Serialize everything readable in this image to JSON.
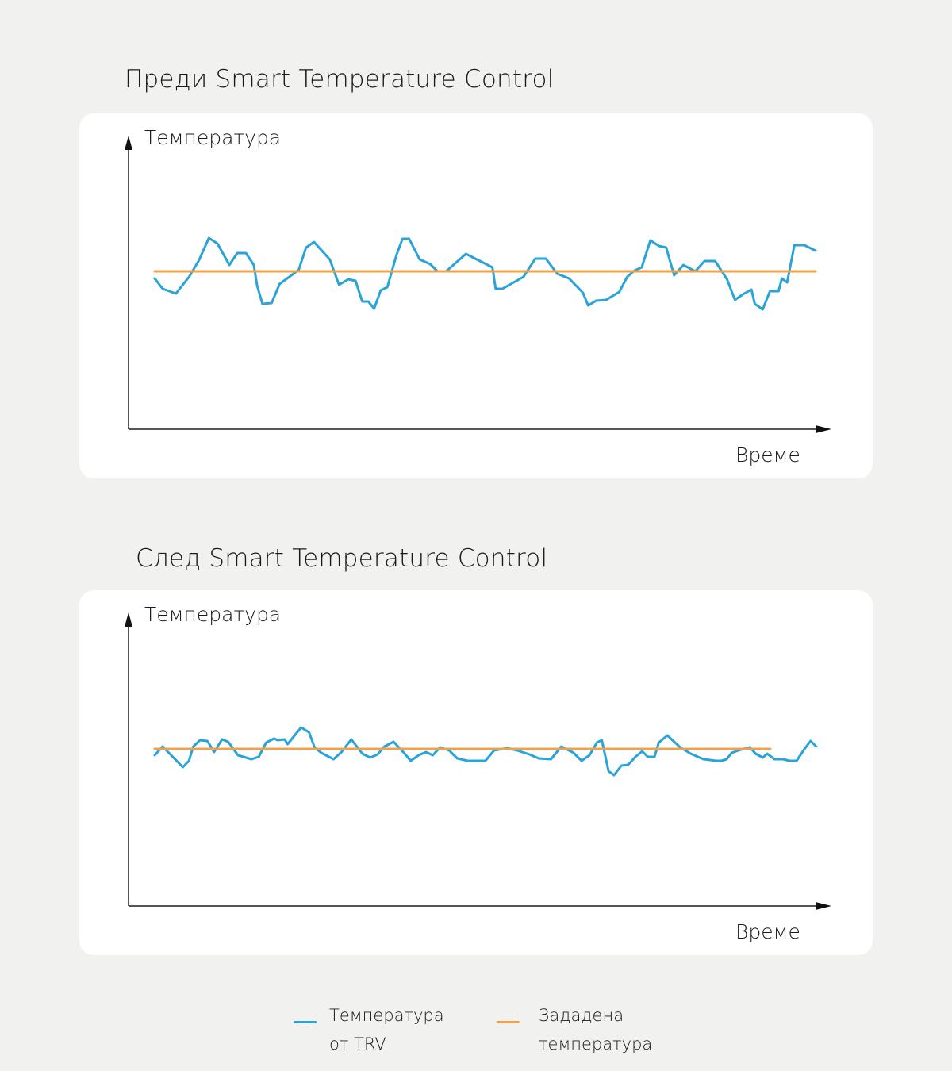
{
  "charts": [
    {
      "title": "Преди Smart Temperature Control",
      "ylabel": "Температура",
      "xlabel": "Време"
    },
    {
      "title": "След Smart Temperature Control",
      "ylabel": "Температура",
      "xlabel": "Време"
    }
  ],
  "legend": {
    "items": [
      {
        "line1": "Температура",
        "line2": "от TRV",
        "color": "#2aa3d8"
      },
      {
        "line1": "Зададена",
        "line2": "температура",
        "color": "#f0a14a"
      }
    ]
  },
  "colors": {
    "background": "#f1f1ef",
    "card": "#ffffff",
    "trv_line": "#2aa3d8",
    "setpoint_line": "#f0a14a",
    "axis": "#555555"
  },
  "chart_data": [
    {
      "type": "line",
      "title": "Преди Smart Temperature Control",
      "xlabel": "Време",
      "ylabel": "Температура",
      "grid": false,
      "legend_position": "bottom",
      "note": "Unitless schematic; x = relative time (0-100), y = relative temperature where setpoint = 0, positive = above setpoint (pixel-scale units)",
      "series": [
        {
          "name": "Температура от TRV",
          "color": "#2aa3d8",
          "points": [
            [
              0,
              -9
            ],
            [
              1.2,
              -22
            ],
            [
              3.2,
              -28
            ],
            [
              5.2,
              -7
            ],
            [
              6.7,
              14
            ],
            [
              8.2,
              42
            ],
            [
              9.5,
              35
            ],
            [
              11.3,
              8
            ],
            [
              12.5,
              23
            ],
            [
              13.8,
              23
            ],
            [
              15,
              8
            ],
            [
              15.5,
              -18
            ],
            [
              16.3,
              -41
            ],
            [
              17.7,
              -40
            ],
            [
              18.9,
              -16
            ],
            [
              20.7,
              -5
            ],
            [
              21.8,
              2
            ],
            [
              22.9,
              30
            ],
            [
              24.1,
              37
            ],
            [
              26.5,
              15
            ],
            [
              27.9,
              -17
            ],
            [
              29.3,
              -10
            ],
            [
              30.4,
              -12
            ],
            [
              31.4,
              -38
            ],
            [
              32.3,
              -38
            ],
            [
              33.2,
              -47
            ],
            [
              34.2,
              -24
            ],
            [
              35.2,
              -20
            ],
            [
              36.6,
              21
            ],
            [
              37.5,
              41
            ],
            [
              38.5,
              41
            ],
            [
              40.1,
              15
            ],
            [
              41.7,
              9
            ],
            [
              42.8,
              0
            ],
            [
              44.1,
              0
            ],
            [
              47.1,
              22
            ],
            [
              51.1,
              5
            ],
            [
              51.6,
              -22
            ],
            [
              52.6,
              -22
            ],
            [
              54.1,
              -15
            ],
            [
              55.8,
              -7
            ],
            [
              57.6,
              16
            ],
            [
              59.2,
              16
            ],
            [
              60.9,
              -3
            ],
            [
              62.7,
              -9
            ],
            [
              64.8,
              -27
            ],
            [
              65.6,
              -43
            ],
            [
              66.8,
              -37
            ],
            [
              68.3,
              -36
            ],
            [
              70.3,
              -26
            ],
            [
              71.5,
              -7
            ],
            [
              72.6,
              1
            ],
            [
              73.7,
              5
            ],
            [
              75,
              39
            ],
            [
              76.3,
              32
            ],
            [
              77.4,
              30
            ],
            [
              78.6,
              -5
            ],
            [
              80,
              8
            ],
            [
              81.8,
              0
            ],
            [
              83.2,
              13
            ],
            [
              84.8,
              13
            ],
            [
              86.6,
              -10
            ],
            [
              87.8,
              -36
            ],
            [
              89,
              -29
            ],
            [
              90.3,
              -23
            ],
            [
              90.8,
              -41
            ],
            [
              92,
              -48
            ],
            [
              93.1,
              -25
            ],
            [
              94.4,
              -25
            ],
            [
              94.9,
              -9
            ],
            [
              95.7,
              -14
            ],
            [
              96.8,
              33
            ],
            [
              98.3,
              33
            ],
            [
              100,
              26
            ]
          ]
        },
        {
          "name": "Зададена температура",
          "color": "#f0a14a",
          "points": [
            [
              0,
              0
            ],
            [
              100,
              0
            ]
          ]
        }
      ],
      "ylim": [
        -200,
        168
      ],
      "xlim": [
        -4,
        102
      ]
    },
    {
      "type": "line",
      "title": "След Smart Temperature Control",
      "xlabel": "Време",
      "ylabel": "Температура",
      "grid": false,
      "legend_position": "bottom",
      "note": "Unitless schematic; x = relative time (0-100), y = relative temperature where setpoint = 0, positive = above setpoint (pixel-scale units)",
      "series": [
        {
          "name": "Температура от TRV",
          "color": "#2aa3d8",
          "points": [
            [
              0,
              -8
            ],
            [
              1.3,
              3
            ],
            [
              4.6,
              -23
            ],
            [
              5.6,
              -15
            ],
            [
              6.3,
              3
            ],
            [
              7.4,
              11
            ],
            [
              8.6,
              10
            ],
            [
              9.7,
              -4
            ],
            [
              11,
              12
            ],
            [
              12,
              9
            ],
            [
              13.6,
              -8
            ],
            [
              15.8,
              -13
            ],
            [
              17,
              -10
            ],
            [
              18.2,
              8
            ],
            [
              19.5,
              13
            ],
            [
              20.1,
              11
            ],
            [
              21.2,
              12
            ],
            [
              21.7,
              6
            ],
            [
              23.9,
              27
            ],
            [
              25.2,
              21
            ],
            [
              26.1,
              2
            ],
            [
              27.2,
              -5
            ],
            [
              29.2,
              -13
            ],
            [
              30.5,
              -4
            ],
            [
              32.1,
              12
            ],
            [
              33.9,
              -6
            ],
            [
              35.2,
              -11
            ],
            [
              36.4,
              -7
            ],
            [
              37.5,
              3
            ],
            [
              39,
              9
            ],
            [
              40.7,
              -5
            ],
            [
              41.8,
              -15
            ],
            [
              43.1,
              -8
            ],
            [
              44.3,
              -4
            ],
            [
              45.4,
              -8
            ],
            [
              46.6,
              2
            ],
            [
              48.1,
              -2
            ],
            [
              49.4,
              -12
            ],
            [
              51.1,
              -15
            ],
            [
              52.7,
              -15
            ],
            [
              54,
              -15
            ],
            [
              55.4,
              -2
            ],
            [
              57.6,
              1
            ],
            [
              59.2,
              -2
            ],
            [
              61.2,
              -7
            ],
            [
              62.7,
              -12
            ],
            [
              64.7,
              -13
            ],
            [
              66.4,
              3
            ],
            [
              68.4,
              -5
            ],
            [
              69.7,
              -15
            ],
            [
              71,
              -8
            ],
            [
              72.2,
              8
            ],
            [
              73,
              11
            ],
            [
              74.1,
              -28
            ],
            [
              75,
              -33
            ],
            [
              76.2,
              -21
            ],
            [
              77.3,
              -20
            ],
            [
              78.5,
              -10
            ],
            [
              79.6,
              -3
            ],
            [
              80.5,
              -10
            ],
            [
              81.6,
              -10
            ],
            [
              82.3,
              8
            ],
            [
              83.7,
              17
            ],
            [
              85.8,
              2
            ],
            [
              87.5,
              -6
            ],
            [
              89.6,
              -13
            ],
            [
              91.7,
              -15
            ],
            [
              92.5,
              -15
            ],
            [
              93.4,
              -13
            ],
            [
              94.2,
              -5
            ],
            [
              95.7,
              -1
            ],
            [
              97.2,
              2
            ],
            [
              98.1,
              -6
            ],
            [
              99.3,
              -11
            ],
            [
              100,
              -6
            ],
            [
              101.2,
              -13
            ],
            [
              102.6,
              -13
            ],
            [
              103.6,
              -15
            ],
            [
              104.8,
              -15
            ],
            [
              106.1,
              0
            ],
            [
              107.1,
              10
            ],
            [
              108,
              3
            ]
          ]
        },
        {
          "name": "Зададена температура",
          "color": "#f0a14a",
          "points": [
            [
              0,
              0
            ],
            [
              100.5,
              0
            ]
          ]
        }
      ],
      "ylim": [
        -200,
        168
      ],
      "xlim": [
        -4,
        102
      ]
    }
  ]
}
